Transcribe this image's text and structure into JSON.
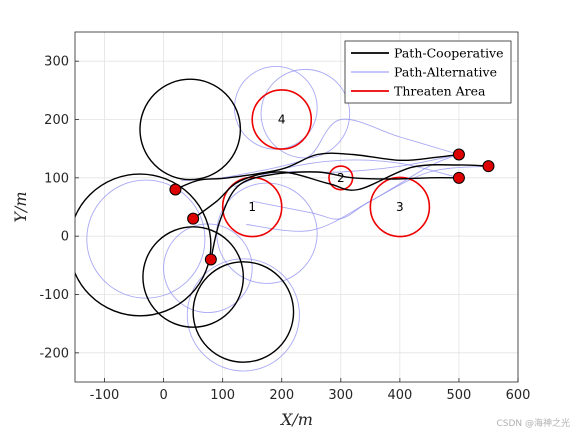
{
  "chart_data": {
    "type": "line",
    "title": "",
    "xlabel": "X/m",
    "ylabel": "Y/m",
    "xlim": [
      -150,
      600
    ],
    "ylim": [
      -250,
      350
    ],
    "xticks": [
      -100,
      0,
      100,
      200,
      300,
      400,
      500,
      600
    ],
    "yticks": [
      -200,
      -100,
      0,
      100,
      200,
      300
    ],
    "xtick_labels": [
      "-100",
      "0",
      "100",
      "200",
      "300",
      "400",
      "500",
      "600"
    ],
    "ytick_labels": [
      "-200",
      "-100",
      "0",
      "100",
      "200",
      "300"
    ],
    "grid": true,
    "legend_position": "top-right",
    "legend": [
      {
        "label": "Path-Cooperative",
        "color": "#000000"
      },
      {
        "label": "Path-Alternative",
        "color": "#8c8cf0"
      },
      {
        "label": "Threaten Area",
        "color": "#ee0000"
      }
    ],
    "threat_areas": [
      {
        "label": "1",
        "x": 150,
        "y": 50,
        "r": 50
      },
      {
        "label": "2",
        "x": 300,
        "y": 100,
        "r": 20
      },
      {
        "label": "3",
        "x": 400,
        "y": 50,
        "r": 50
      },
      {
        "label": "4",
        "x": 200,
        "y": 200,
        "r": 50
      }
    ],
    "start_points": [
      {
        "x": 20,
        "y": 80
      },
      {
        "x": 50,
        "y": 30
      },
      {
        "x": 80,
        "y": -40
      }
    ],
    "goal_points": [
      {
        "x": 500,
        "y": 140
      },
      {
        "x": 550,
        "y": 120
      },
      {
        "x": 500,
        "y": 100
      }
    ],
    "cooperative_loops": [
      {
        "x": 45,
        "y": 183,
        "r": 85
      },
      {
        "x": -40,
        "y": -15,
        "r": 120
      },
      {
        "x": 50,
        "y": -70,
        "r": 85
      },
      {
        "x": 135,
        "y": -130,
        "r": 85
      }
    ],
    "cooperative_paths": [
      {
        "x": [
          20,
          60,
          110,
          200,
          260,
          320,
          400,
          460,
          500
        ],
        "y": [
          80,
          96,
          100,
          115,
          140,
          140,
          130,
          135,
          140
        ]
      },
      {
        "x": [
          50,
          90,
          130,
          200,
          280,
          330,
          420,
          500,
          550
        ],
        "y": [
          30,
          60,
          95,
          110,
          90,
          80,
          118,
          122,
          120
        ]
      },
      {
        "x": [
          80,
          95,
          125,
          180,
          260,
          320,
          390,
          450,
          500
        ],
        "y": [
          -40,
          25,
          85,
          105,
          110,
          100,
          98,
          100,
          100
        ]
      }
    ],
    "alternative_loops": [
      {
        "x": -30,
        "y": -5,
        "r": 100
      },
      {
        "x": 240,
        "y": 210,
        "r": 75
      },
      {
        "x": 190,
        "y": 220,
        "r": 70
      },
      {
        "x": 175,
        "y": 5,
        "r": 85
      },
      {
        "x": 135,
        "y": -135,
        "r": 95
      },
      {
        "x": 75,
        "y": -55,
        "r": 75
      }
    ],
    "alternative_paths": [
      {
        "x": [
          30,
          100,
          200,
          300,
          400,
          500
        ],
        "y": [
          95,
          100,
          110,
          110,
          120,
          140
        ]
      },
      {
        "x": [
          100,
          200,
          250,
          300,
          400,
          500
        ],
        "y": [
          100,
          120,
          140,
          200,
          170,
          140
        ]
      },
      {
        "x": [
          150,
          250,
          300,
          350,
          450,
          550
        ],
        "y": [
          60,
          40,
          30,
          60,
          110,
          120
        ]
      },
      {
        "x": [
          140,
          250,
          350,
          450,
          500
        ],
        "y": [
          20,
          10,
          60,
          120,
          140
        ]
      },
      {
        "x": [
          120,
          200,
          300,
          400,
          500
        ],
        "y": [
          85,
          115,
          130,
          125,
          100
        ]
      }
    ]
  },
  "watermark": "CSDN @海神之光"
}
